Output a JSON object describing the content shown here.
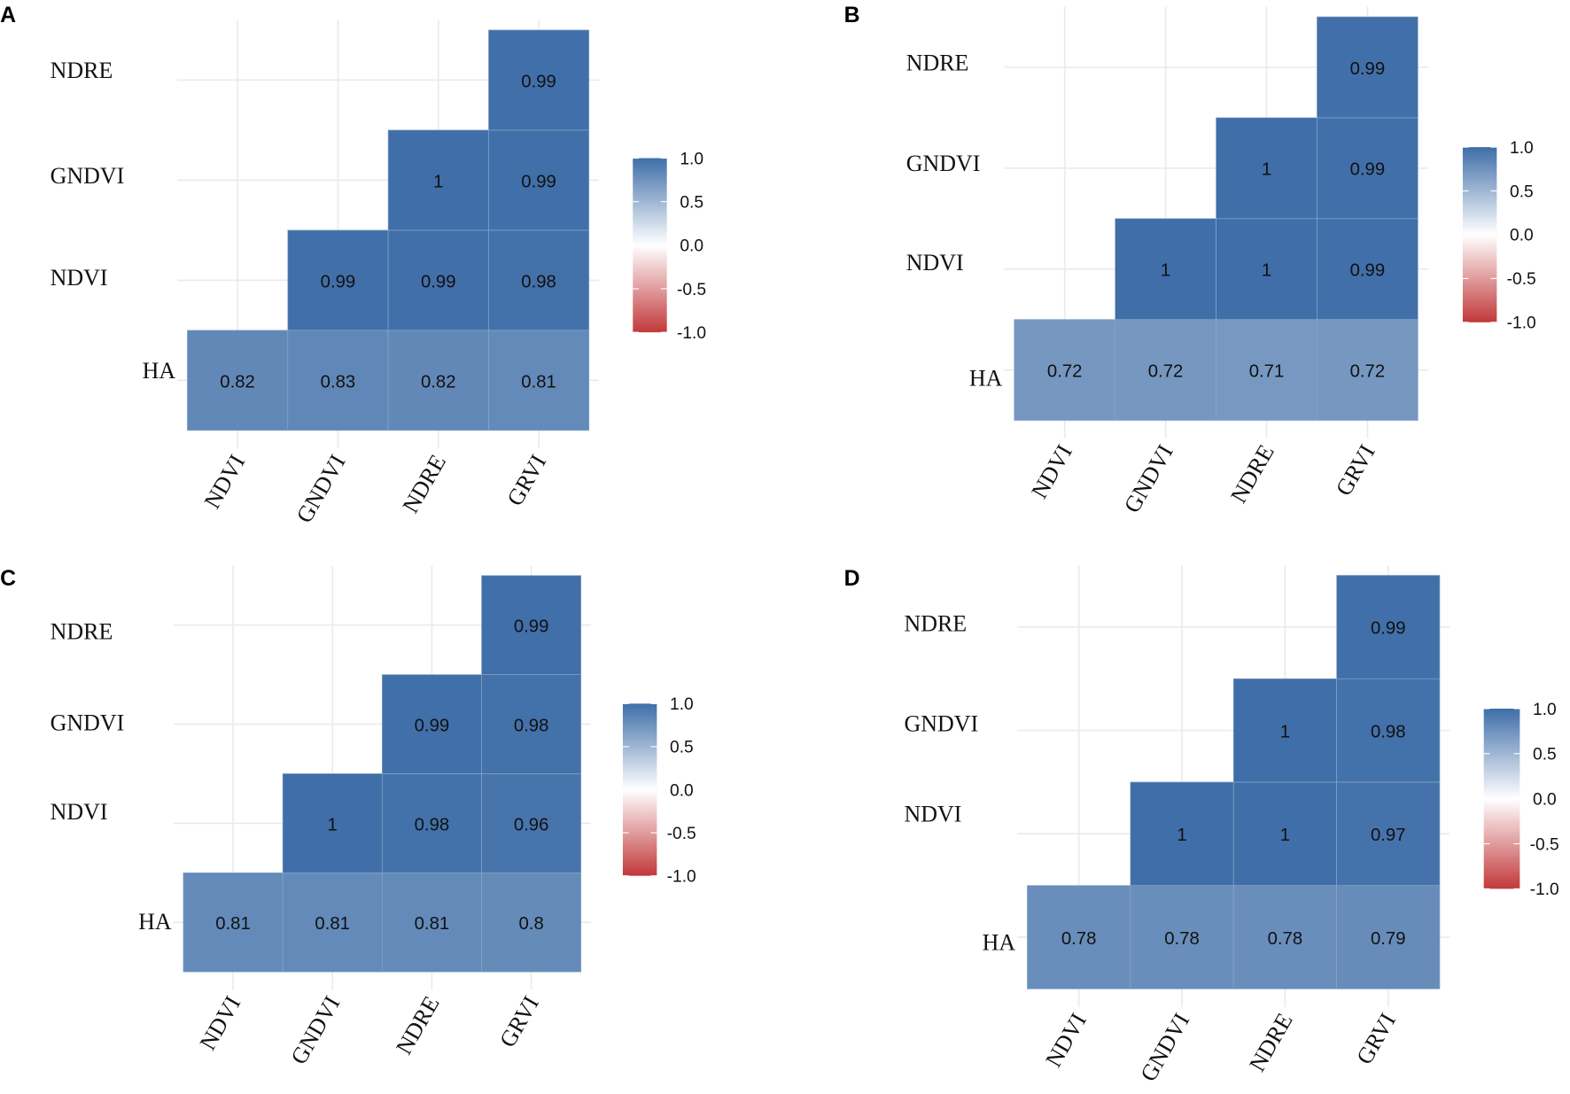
{
  "chart_data": [
    {
      "panel": "A",
      "type": "heatmap",
      "row_labels": [
        "HA",
        "NDVI",
        "GNDVI",
        "NDRE"
      ],
      "col_labels": [
        "NDVI",
        "GNDVI",
        "NDRE",
        "GRVI"
      ],
      "cells": [
        [
          "HA",
          "NDVI",
          0.82
        ],
        [
          "HA",
          "GNDVI",
          0.83
        ],
        [
          "HA",
          "NDRE",
          0.82
        ],
        [
          "HA",
          "GRVI",
          0.81
        ],
        [
          "NDVI",
          "GNDVI",
          0.99
        ],
        [
          "NDVI",
          "NDRE",
          0.99
        ],
        [
          "NDVI",
          "GRVI",
          0.98
        ],
        [
          "GNDVI",
          "NDRE",
          1
        ],
        [
          "GNDVI",
          "GRVI",
          0.99
        ],
        [
          "NDRE",
          "GRVI",
          0.99
        ]
      ],
      "legend_ticks": [
        "1.0",
        "0.5",
        "0.0",
        "-0.5",
        "-1.0"
      ],
      "legend_range": [
        -1,
        1
      ],
      "grid": true,
      "legend_placement": "right"
    },
    {
      "panel": "B",
      "type": "heatmap",
      "row_labels": [
        "HA",
        "NDVI",
        "GNDVI",
        "NDRE"
      ],
      "col_labels": [
        "NDVI",
        "GNDVI",
        "NDRE",
        "GRVI"
      ],
      "cells": [
        [
          "HA",
          "NDVI",
          0.72
        ],
        [
          "HA",
          "GNDVI",
          0.72
        ],
        [
          "HA",
          "NDRE",
          0.71
        ],
        [
          "HA",
          "GRVI",
          0.72
        ],
        [
          "NDVI",
          "GNDVI",
          1
        ],
        [
          "NDVI",
          "NDRE",
          1
        ],
        [
          "NDVI",
          "GRVI",
          0.99
        ],
        [
          "GNDVI",
          "NDRE",
          1
        ],
        [
          "GNDVI",
          "GRVI",
          0.99
        ],
        [
          "NDRE",
          "GRVI",
          0.99
        ]
      ],
      "legend_ticks": [
        "1.0",
        "0.5",
        "0.0",
        "-0.5",
        "-1.0"
      ],
      "legend_range": [
        -1,
        1
      ],
      "grid": true,
      "legend_placement": "right"
    },
    {
      "panel": "C",
      "type": "heatmap",
      "row_labels": [
        "HA",
        "NDVI",
        "GNDVI",
        "NDRE"
      ],
      "col_labels": [
        "NDVI",
        "GNDVI",
        "NDRE",
        "GRVI"
      ],
      "cells": [
        [
          "HA",
          "NDVI",
          0.81
        ],
        [
          "HA",
          "GNDVI",
          0.81
        ],
        [
          "HA",
          "NDRE",
          0.81
        ],
        [
          "HA",
          "GRVI",
          0.8
        ],
        [
          "NDVI",
          "GNDVI",
          1
        ],
        [
          "NDVI",
          "NDRE",
          0.98
        ],
        [
          "NDVI",
          "GRVI",
          0.96
        ],
        [
          "GNDVI",
          "NDRE",
          0.99
        ],
        [
          "GNDVI",
          "GRVI",
          0.98
        ],
        [
          "NDRE",
          "GRVI",
          0.99
        ]
      ],
      "legend_ticks": [
        "1.0",
        "0.5",
        "0.0",
        "-0.5",
        "-1.0"
      ],
      "legend_range": [
        -1,
        1
      ],
      "grid": true,
      "legend_placement": "right"
    },
    {
      "panel": "D",
      "type": "heatmap",
      "row_labels": [
        "HA",
        "NDVI",
        "GNDVI",
        "NDRE"
      ],
      "col_labels": [
        "NDVI",
        "GNDVI",
        "NDRE",
        "GRVI"
      ],
      "cells": [
        [
          "HA",
          "NDVI",
          0.78
        ],
        [
          "HA",
          "GNDVI",
          0.78
        ],
        [
          "HA",
          "NDRE",
          0.78
        ],
        [
          "HA",
          "GRVI",
          0.79
        ],
        [
          "NDVI",
          "GNDVI",
          1
        ],
        [
          "NDVI",
          "NDRE",
          1
        ],
        [
          "NDVI",
          "GRVI",
          0.97
        ],
        [
          "GNDVI",
          "NDRE",
          1
        ],
        [
          "GNDVI",
          "GRVI",
          0.98
        ],
        [
          "NDRE",
          "GRVI",
          0.99
        ]
      ],
      "legend_ticks": [
        "1.0",
        "0.5",
        "0.0",
        "-0.5",
        "-1.0"
      ],
      "legend_range": [
        -1,
        1
      ],
      "grid": true,
      "legend_placement": "right"
    }
  ],
  "colors": {
    "negative": "#c2383a",
    "zero": "#ffffff",
    "positive": "#3f6ea8"
  }
}
